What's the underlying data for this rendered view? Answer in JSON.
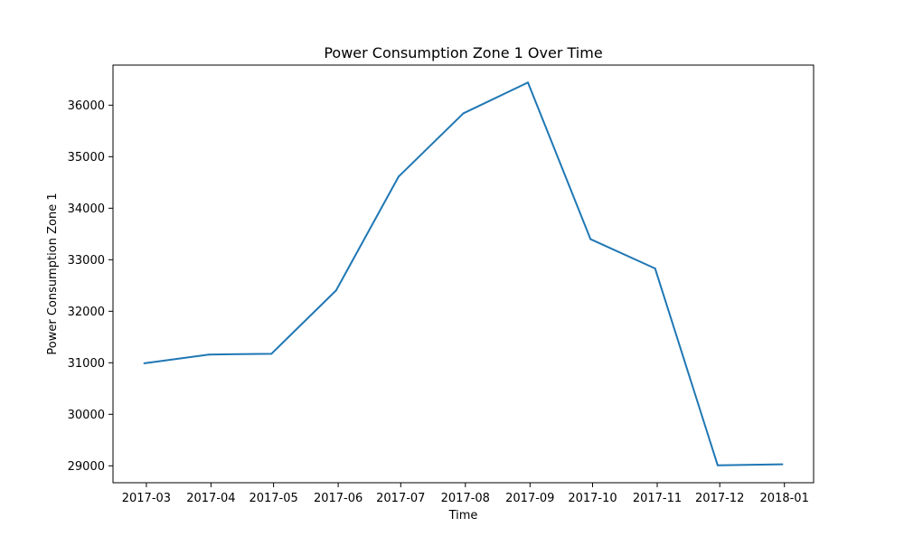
{
  "chart_data": {
    "type": "line",
    "title": "Power Consumption Zone 1 Over Time",
    "xlabel": "Time",
    "ylabel": "Power Consumption Zone 1",
    "x_type": "date",
    "x": [
      "2017-02-28",
      "2017-03-31",
      "2017-04-30",
      "2017-05-31",
      "2017-06-30",
      "2017-07-31",
      "2017-08-31",
      "2017-09-30",
      "2017-10-31",
      "2017-11-30",
      "2017-12-31"
    ],
    "series": [
      {
        "values": [
          30990,
          31160,
          31175,
          32405,
          34615,
          35840,
          36440,
          33400,
          32830,
          29010,
          29030
        ],
        "color": "#1f77b4"
      }
    ],
    "x_ticks": [
      "2017-03",
      "2017-04",
      "2017-05",
      "2017-06",
      "2017-07",
      "2017-08",
      "2017-09",
      "2017-10",
      "2017-11",
      "2017-12",
      "2018-01"
    ],
    "x_tick_dates": [
      "2017-03-01",
      "2017-04-01",
      "2017-05-01",
      "2017-06-01",
      "2017-07-01",
      "2017-08-01",
      "2017-09-01",
      "2017-10-01",
      "2017-11-01",
      "2017-12-01",
      "2018-01-01"
    ],
    "y_ticks": [
      "29000",
      "30000",
      "31000",
      "32000",
      "33000",
      "34000",
      "35000",
      "36000"
    ],
    "xlim": [
      "2017-02-13",
      "2018-01-15"
    ],
    "ylim": [
      28672,
      36778
    ],
    "grid": false,
    "legend": "none"
  }
}
